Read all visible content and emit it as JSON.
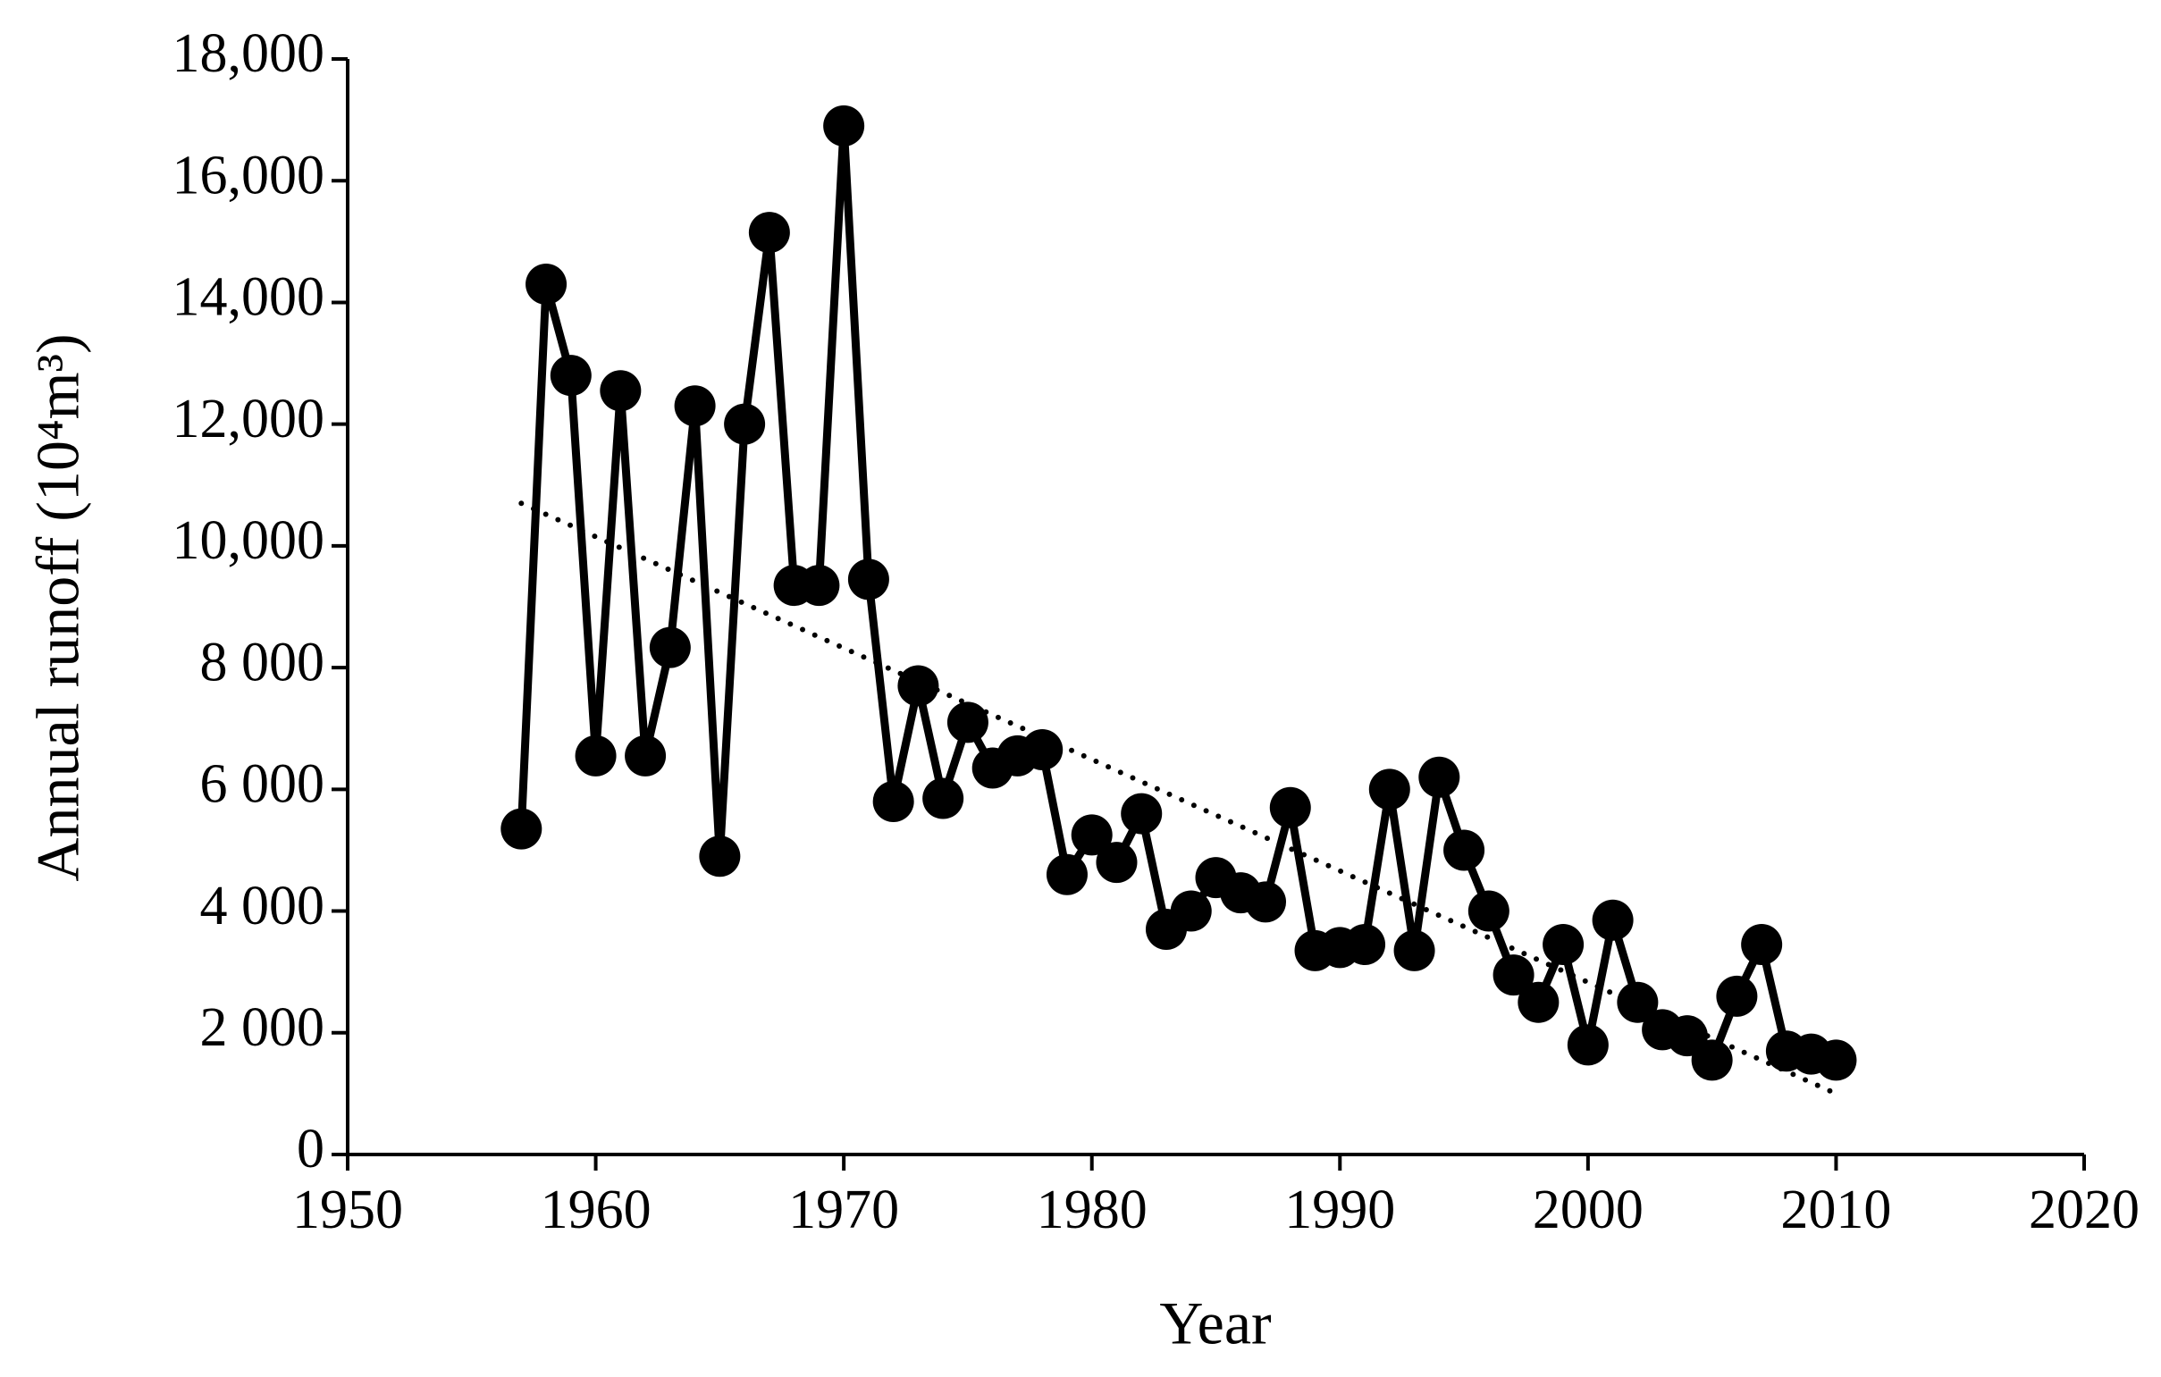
{
  "chart_data": {
    "type": "line",
    "x_label": "Year",
    "y_label": "Annual runoff (10⁴m³)",
    "x": [
      1957,
      1958,
      1959,
      1960,
      1961,
      1962,
      1963,
      1964,
      1965,
      1966,
      1967,
      1968,
      1969,
      1970,
      1971,
      1972,
      1973,
      1974,
      1975,
      1976,
      1977,
      1978,
      1979,
      1980,
      1981,
      1982,
      1983,
      1984,
      1985,
      1986,
      1987,
      1988,
      1989,
      1990,
      1991,
      1992,
      1993,
      1994,
      1995,
      1996,
      1997,
      1998,
      1999,
      2000,
      2001,
      2002,
      2003,
      2004,
      2005,
      2006,
      2007,
      2008,
      2009,
      2010
    ],
    "series": [
      {
        "color": "#000000",
        "values": [
          5350,
          14300,
          12800,
          6550,
          12550,
          6550,
          8330,
          12300,
          4900,
          12000,
          15150,
          9350,
          9350,
          16900,
          9450,
          5800,
          7700,
          5850,
          7100,
          6350,
          6550,
          6650,
          4600,
          5250,
          4800,
          5600,
          3700,
          4000,
          4550,
          4300,
          4150,
          5700,
          3350,
          3400,
          3450,
          6000,
          3350,
          6200,
          5000,
          4000,
          2950,
          2500,
          3450,
          1800,
          3850,
          2500,
          2050,
          1950,
          1550,
          2600,
          3450,
          1700,
          1650,
          1550
        ]
      }
    ],
    "trendline": {
      "x": [
        1957,
        2010
      ],
      "values": [
        10700,
        1000
      ],
      "color": "#000000",
      "style": "dotted"
    },
    "xlim": [
      1950,
      2020
    ],
    "xticks": [
      1950,
      1960,
      1970,
      1980,
      1990,
      2000,
      2010,
      2020
    ],
    "ylim": [
      0,
      18000
    ],
    "yticks": [
      0,
      {
        "value": 2000,
        "label": "2 000"
      },
      {
        "value": 4000,
        "label": "4 000"
      },
      {
        "value": 6000,
        "label": "6 000"
      },
      {
        "value": 8000,
        "label": "8 000"
      },
      {
        "value": 10000,
        "label": "10,000"
      },
      {
        "value": 12000,
        "label": "12,000"
      },
      {
        "value": 14000,
        "label": "14,000"
      },
      {
        "value": 16000,
        "label": "16,000"
      },
      {
        "value": 18000,
        "label": "18,000"
      }
    ],
    "grid": false
  }
}
